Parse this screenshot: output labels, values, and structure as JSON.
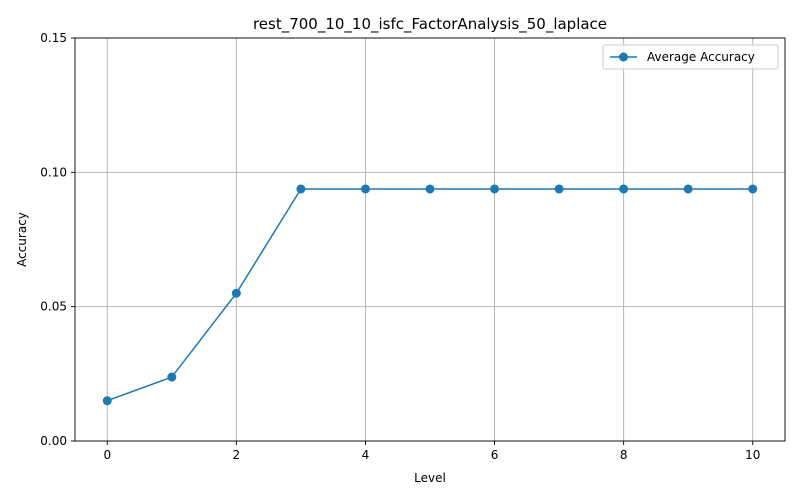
{
  "chart_data": {
    "type": "line",
    "title": "rest_700_10_10_isfc_FactorAnalysis_50_laplace",
    "xlabel": "Level",
    "ylabel": "Accuracy",
    "xlim": [
      -0.5,
      10.5
    ],
    "ylim": [
      0.0,
      0.15
    ],
    "xticks": [
      0,
      2,
      4,
      6,
      8,
      10
    ],
    "xtick_labels": [
      "0",
      "2",
      "4",
      "6",
      "8",
      "10"
    ],
    "yticks": [
      0.0,
      0.05,
      0.1,
      0.15
    ],
    "ytick_labels": [
      "0.00",
      "0.05",
      "0.10",
      "0.15"
    ],
    "grid": true,
    "legend_position": "top-right",
    "series": [
      {
        "name": "Average Accuracy",
        "color": "#1f77b4",
        "marker": "circle",
        "x": [
          0,
          1,
          2,
          3,
          4,
          5,
          6,
          7,
          8,
          9,
          10
        ],
        "values": [
          0.015,
          0.0238,
          0.055,
          0.0938,
          0.0938,
          0.0938,
          0.0938,
          0.0938,
          0.0938,
          0.0938,
          0.0938
        ]
      }
    ]
  }
}
